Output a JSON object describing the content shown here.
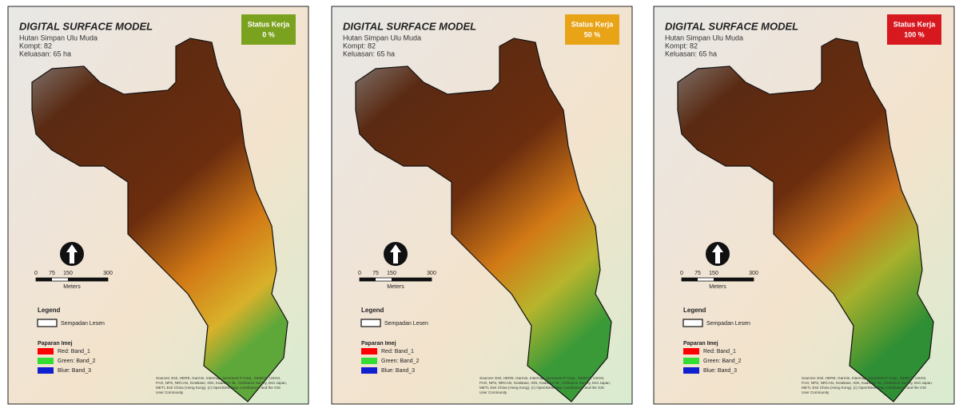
{
  "panels": [
    {
      "title": "DIGITAL SURFACE MODEL",
      "subtitle": [
        "Hutan Simpan Ulu Muda",
        "Kompt: 82",
        "Keluasan: 65 ha"
      ],
      "status": {
        "label": "Status Kerja",
        "value": "0 %",
        "color": "#7ba21e"
      }
    },
    {
      "title": "DIGITAL SURFACE MODEL",
      "subtitle": [
        "Hutan Simpan Ulu Muda",
        "Kompt: 82",
        "Keluasan: 65 ha"
      ],
      "status": {
        "label": "Status Kerja",
        "value": "50 %",
        "color": "#e8a317"
      }
    },
    {
      "title": "DIGITAL SURFACE MODEL",
      "subtitle": [
        "Hutan Simpan Ulu Muda",
        "Kompt: 82",
        "Keluasan: 65 ha"
      ],
      "status": {
        "label": "Status Kerja",
        "value": "100 %",
        "color": "#d7181f"
      }
    }
  ],
  "scale_bar": {
    "ticks": [
      "0",
      "75",
      "150",
      "300"
    ],
    "unit": "Meters"
  },
  "legend": {
    "title": "Legend",
    "boundary": "Sempadan Lesen",
    "image_title": "Paparan Imej",
    "bands": [
      {
        "label": "Red:  Band_1",
        "color": "#ff0000"
      },
      {
        "label": "Green: Band_2",
        "color": "#33dd33"
      },
      {
        "label": "Blue:  Band_3",
        "color": "#1020d0"
      }
    ]
  },
  "sources": [
    "Sources: Esri, HERE, Garmin, Intermap, increment P Corp., GEBCO, USGS,",
    "FAO, NPS, NRCAN, GeoBase, IGN, Kadaster NL, Ordnance Survey, Esri Japan,",
    "METI, Esri China (Hong Kong), (c) OpenStreetMap contributors, and the GIS",
    "User Community"
  ]
}
